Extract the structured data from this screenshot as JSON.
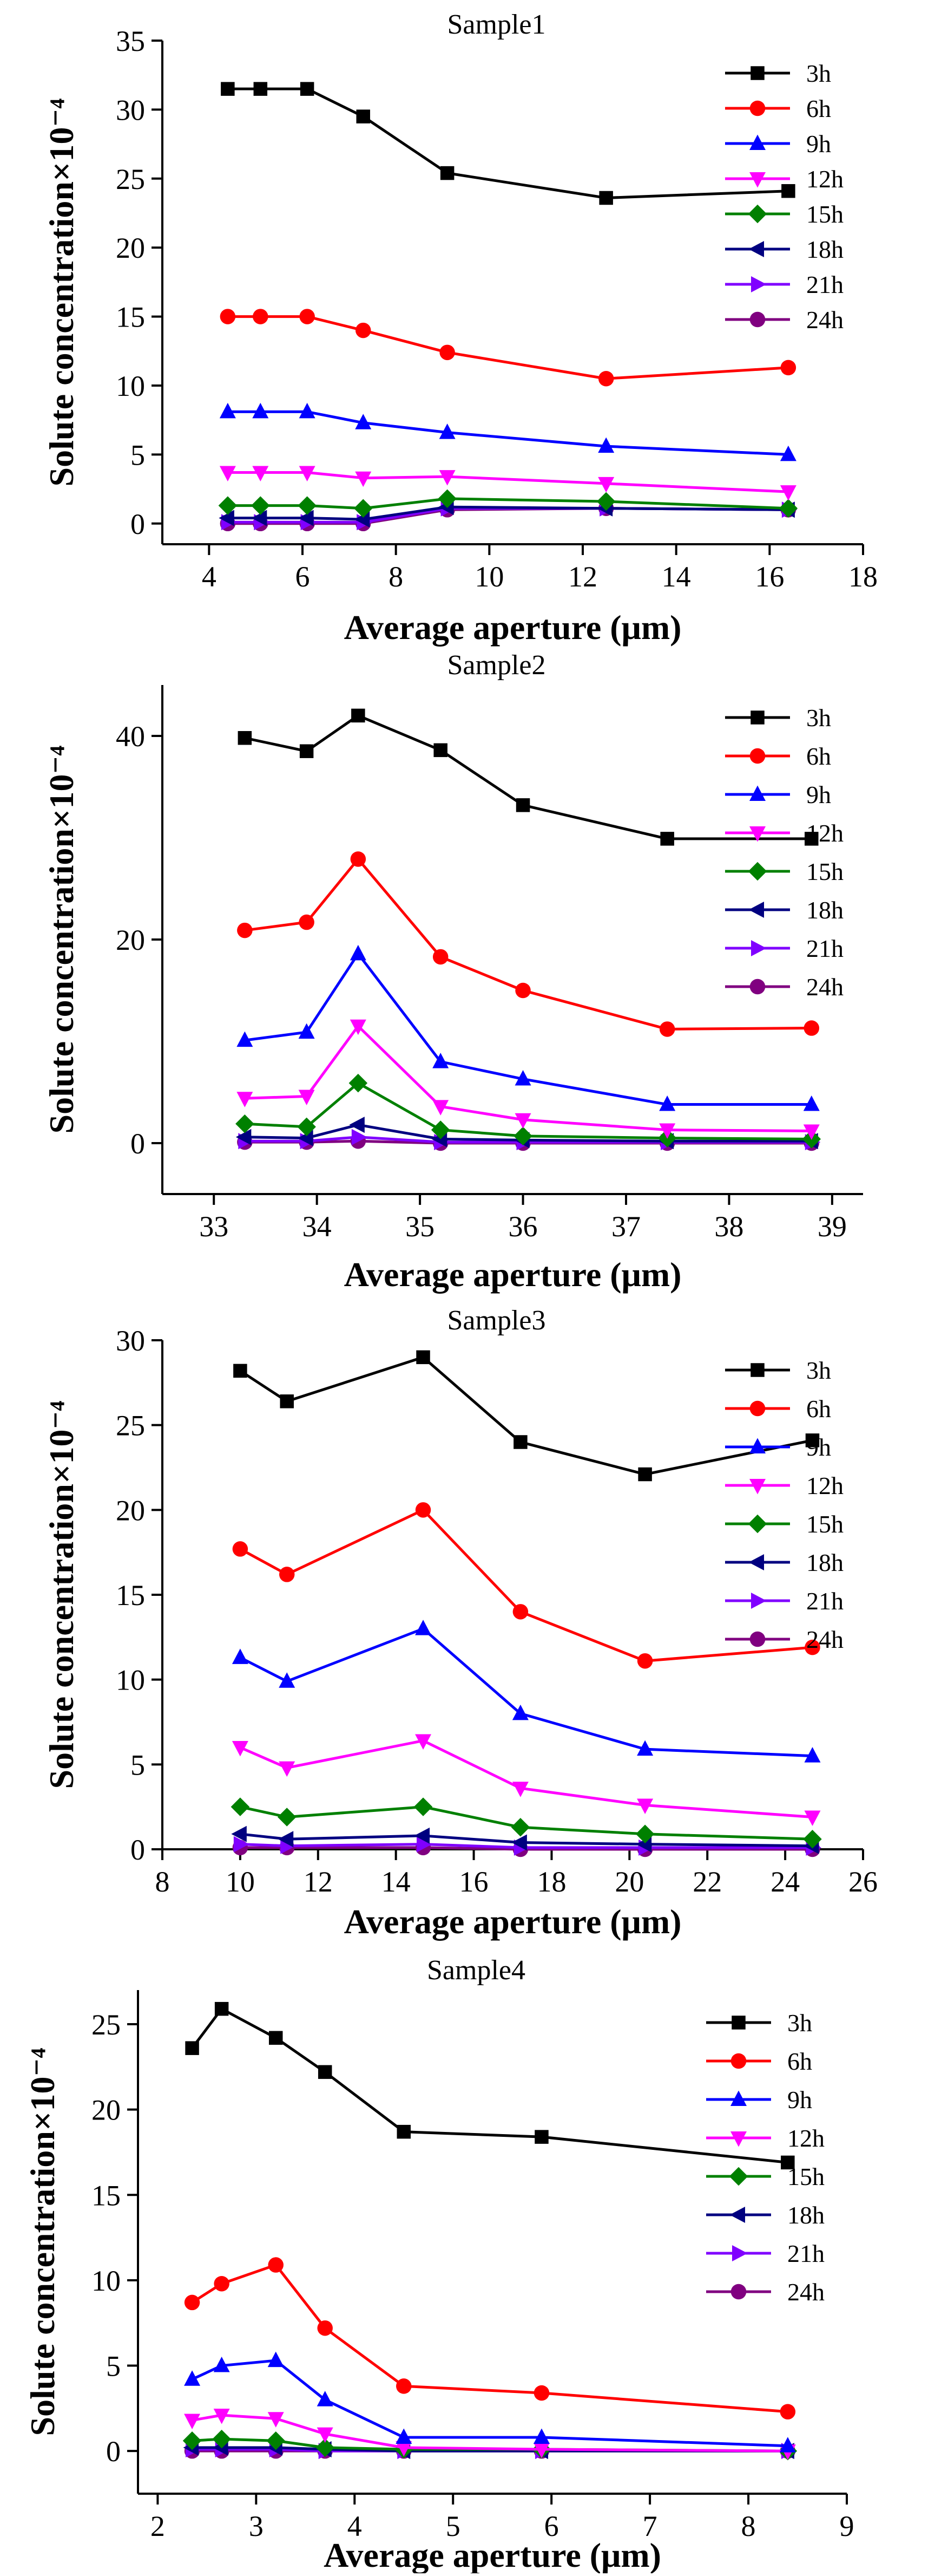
{
  "series_names": [
    "3h",
    "6h",
    "9h",
    "12h",
    "15h",
    "18h",
    "21h",
    "24h"
  ],
  "series_colors": [
    "#000000",
    "#ff0000",
    "#0000ff",
    "#ff00ff",
    "#008000",
    "#000080",
    "#8000ff",
    "#800080"
  ],
  "series_markers": [
    "square",
    "circle",
    "triangle-up",
    "triangle-down",
    "diamond",
    "triangle-left",
    "triangle-right",
    "circle"
  ],
  "chart_data": [
    {
      "type": "line",
      "title": "Sample1",
      "xlabel": "Average aperture (μm)",
      "ylabel": "Solute concentration×10⁻⁴",
      "xlim": [
        3,
        18
      ],
      "ylim": [
        -1.5,
        35
      ],
      "xticks": [
        4,
        6,
        8,
        10,
        12,
        14,
        16,
        18
      ],
      "yticks": [
        0,
        5,
        10,
        15,
        20,
        25,
        30,
        35
      ],
      "x": [
        4.4,
        5.1,
        6.1,
        7.3,
        9.1,
        12.5,
        16.4
      ],
      "series": [
        {
          "name": "3h",
          "values": [
            31.5,
            31.5,
            31.5,
            29.5,
            25.4,
            23.6,
            24.1
          ]
        },
        {
          "name": "6h",
          "values": [
            15.0,
            15.0,
            15.0,
            14.0,
            12.4,
            10.5,
            11.3
          ]
        },
        {
          "name": "9h",
          "values": [
            8.1,
            8.1,
            8.1,
            7.3,
            6.6,
            5.6,
            5.0
          ]
        },
        {
          "name": "12h",
          "values": [
            3.7,
            3.7,
            3.7,
            3.3,
            3.4,
            2.9,
            2.3
          ]
        },
        {
          "name": "15h",
          "values": [
            1.3,
            1.3,
            1.3,
            1.1,
            1.8,
            1.6,
            1.1
          ]
        },
        {
          "name": "18h",
          "values": [
            0.4,
            0.4,
            0.4,
            0.3,
            1.2,
            1.1,
            1.0
          ]
        },
        {
          "name": "21h",
          "values": [
            0.1,
            0.1,
            0.1,
            0.1,
            1.1,
            1.1,
            1.0
          ]
        },
        {
          "name": "24h",
          "values": [
            0.0,
            0.0,
            0.0,
            0.0,
            1.0,
            1.1,
            1.0
          ]
        }
      ]
    },
    {
      "type": "line",
      "title": "Sample2",
      "xlabel": "Average aperture (μm)",
      "ylabel": "Solute concentration×10⁻⁴",
      "xlim": [
        32.5,
        39.3
      ],
      "ylim": [
        -5,
        45
      ],
      "xticks": [
        33,
        34,
        35,
        36,
        37,
        38,
        39
      ],
      "yticks": [
        0,
        20,
        40
      ],
      "x": [
        33.3,
        33.9,
        34.4,
        35.2,
        36.0,
        37.4,
        38.8
      ],
      "series": [
        {
          "name": "3h",
          "values": [
            39.8,
            38.5,
            42.0,
            38.6,
            33.2,
            29.9,
            29.9
          ]
        },
        {
          "name": "6h",
          "values": [
            20.9,
            21.7,
            27.9,
            18.3,
            15.0,
            11.2,
            11.3
          ]
        },
        {
          "name": "9h",
          "values": [
            10.1,
            10.9,
            18.6,
            8.0,
            6.3,
            3.8,
            3.8
          ]
        },
        {
          "name": "12h",
          "values": [
            4.4,
            4.6,
            11.5,
            3.6,
            2.3,
            1.3,
            1.2
          ]
        },
        {
          "name": "15h",
          "values": [
            1.9,
            1.6,
            5.9,
            1.3,
            0.7,
            0.5,
            0.4
          ]
        },
        {
          "name": "18h",
          "values": [
            0.6,
            0.5,
            1.8,
            0.4,
            0.3,
            0.2,
            0.2
          ]
        },
        {
          "name": "21h",
          "values": [
            0.2,
            0.2,
            0.6,
            0.1,
            0.1,
            0.1,
            0.1
          ]
        },
        {
          "name": "24h",
          "values": [
            0.1,
            0.1,
            0.2,
            0.0,
            0.0,
            0.0,
            0.0
          ]
        }
      ]
    },
    {
      "type": "line",
      "title": "Sample3",
      "xlabel": "Average aperture (μm)",
      "ylabel": "Solute concentration×10⁻⁴",
      "xlim": [
        8,
        26
      ],
      "ylim": [
        0,
        30
      ],
      "xticks": [
        8,
        10,
        12,
        14,
        16,
        18,
        20,
        22,
        24,
        26
      ],
      "yticks": [
        0,
        5,
        10,
        15,
        20,
        25,
        30
      ],
      "x": [
        10.0,
        11.2,
        14.7,
        17.2,
        20.4,
        24.7
      ],
      "series": [
        {
          "name": "3h",
          "values": [
            28.2,
            26.4,
            29.0,
            24.0,
            22.1,
            24.1
          ]
        },
        {
          "name": "6h",
          "values": [
            17.7,
            16.2,
            20.0,
            14.0,
            11.1,
            11.9
          ]
        },
        {
          "name": "9h",
          "values": [
            11.3,
            9.9,
            13.0,
            8.0,
            5.9,
            5.5
          ]
        },
        {
          "name": "12h",
          "values": [
            6.0,
            4.8,
            6.4,
            3.6,
            2.6,
            1.9
          ]
        },
        {
          "name": "15h",
          "values": [
            2.5,
            1.9,
            2.5,
            1.3,
            0.9,
            0.6
          ]
        },
        {
          "name": "18h",
          "values": [
            0.9,
            0.6,
            0.8,
            0.4,
            0.3,
            0.2
          ]
        },
        {
          "name": "21h",
          "values": [
            0.3,
            0.2,
            0.3,
            0.1,
            0.1,
            0.1
          ]
        },
        {
          "name": "24h",
          "values": [
            0.1,
            0.1,
            0.1,
            0.0,
            0.0,
            0.0
          ]
        }
      ]
    },
    {
      "type": "line",
      "title": "Sample4",
      "xlabel": "Average aperture (μm)",
      "ylabel": "Solute concentration×10⁻⁴",
      "xlim": [
        1.8,
        9.0
      ],
      "ylim": [
        -2.5,
        27
      ],
      "xticks": [
        2,
        3,
        4,
        5,
        6,
        7,
        8,
        9
      ],
      "yticks": [
        0,
        5,
        10,
        15,
        20,
        25
      ],
      "x": [
        2.35,
        2.65,
        3.2,
        3.7,
        4.5,
        5.9,
        8.4
      ],
      "series": [
        {
          "name": "3h",
          "values": [
            23.6,
            25.9,
            24.2,
            22.2,
            18.7,
            18.4,
            16.9
          ]
        },
        {
          "name": "6h",
          "values": [
            8.7,
            9.8,
            10.9,
            7.2,
            3.8,
            3.4,
            2.3
          ]
        },
        {
          "name": "9h",
          "values": [
            4.2,
            5.0,
            5.3,
            3.0,
            0.8,
            0.8,
            0.3
          ]
        },
        {
          "name": "12h",
          "values": [
            1.8,
            2.1,
            1.9,
            1.0,
            0.2,
            0.1,
            0.0
          ]
        },
        {
          "name": "15h",
          "values": [
            0.6,
            0.7,
            0.6,
            0.2,
            0.1,
            0.1,
            0.0
          ]
        },
        {
          "name": "18h",
          "values": [
            0.2,
            0.2,
            0.2,
            0.1,
            0.0,
            0.0,
            0.0
          ]
        },
        {
          "name": "21h",
          "values": [
            0.1,
            0.1,
            0.1,
            0.0,
            0.0,
            0.0,
            0.0
          ]
        },
        {
          "name": "24h",
          "values": [
            0.0,
            0.0,
            0.0,
            0.0,
            0.0,
            0.0,
            0.0
          ]
        }
      ]
    }
  ]
}
